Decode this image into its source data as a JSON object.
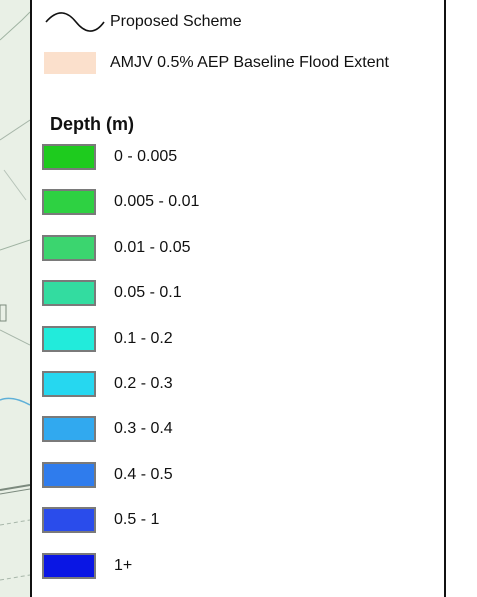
{
  "legend": {
    "scheme_label": "Proposed Scheme",
    "extent_label": "AMJV 0.5% AEP Baseline Flood Extent",
    "extent_color": "#fbe0cc",
    "depth_title": "Depth (m)",
    "classes": [
      {
        "label": "0 - 0.005",
        "color": "#1ecb1e"
      },
      {
        "label": "0.005 - 0.01",
        "color": "#2ed142"
      },
      {
        "label": "0.01 - 0.05",
        "color": "#3bd56f"
      },
      {
        "label": "0.05 - 0.1",
        "color": "#33dca0"
      },
      {
        "label": "0.1 - 0.2",
        "color": "#22ebdb"
      },
      {
        "label": "0.2 - 0.3",
        "color": "#26d7f0"
      },
      {
        "label": "0.3 - 0.4",
        "color": "#31a9ef"
      },
      {
        "label": "0.4 - 0.5",
        "color": "#2f7ced"
      },
      {
        "label": "0.5 - 1",
        "color": "#2a4ceb"
      },
      {
        "label": "1+",
        "color": "#0a16e4"
      }
    ]
  }
}
